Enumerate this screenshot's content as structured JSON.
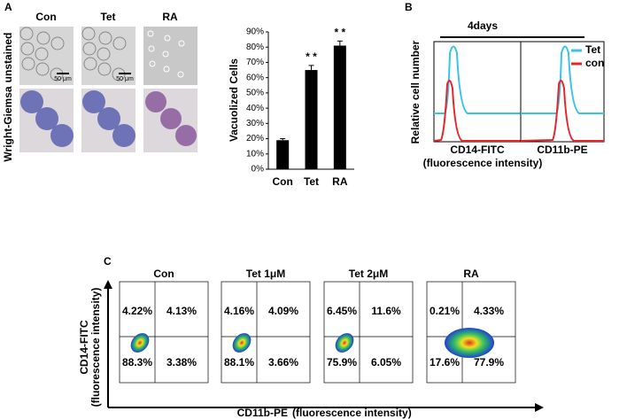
{
  "panel_a": {
    "label": "A",
    "columns": [
      "Con",
      "Tet",
      "RA"
    ],
    "rows": [
      "unstained",
      "Wright-Giemsa"
    ],
    "scale_bar": "50 μm"
  },
  "chart_data": {
    "type": "bar",
    "y_label": "Vacuolized Cells",
    "categories": [
      "Con",
      "Tet",
      "RA"
    ],
    "values": [
      19,
      65,
      81
    ],
    "errors": [
      1,
      3,
      3
    ],
    "significance": [
      null,
      "* *",
      "* *"
    ],
    "color": "#000000",
    "ylim": [
      0,
      90
    ],
    "yticks": [
      {
        "value": 0,
        "label": "0%"
      },
      {
        "value": 10,
        "label": "10%"
      },
      {
        "value": 20,
        "label": "20%"
      },
      {
        "value": 30,
        "label": "30%"
      },
      {
        "value": 40,
        "label": "40%"
      },
      {
        "value": 50,
        "label": "50%"
      },
      {
        "value": 60,
        "label": "60%"
      },
      {
        "value": 70,
        "label": "70%"
      },
      {
        "value": 80,
        "label": "80%"
      },
      {
        "value": 90,
        "label": "90%"
      }
    ]
  },
  "panel_b": {
    "label": "B",
    "duration": "4days",
    "y_label": "Relative cell number",
    "legend": [
      {
        "name": "Tet",
        "color": "#38c3e8"
      },
      {
        "name": "con",
        "color": "#e8242a"
      }
    ],
    "x_labels": [
      "CD14-FITC",
      "CD11b-PE"
    ],
    "x_sublabel": "(fluorescence intensity)"
  },
  "panel_c": {
    "label": "C",
    "y_label": "CD14-FITC",
    "y_sublabel": "(fluorescence intensity)",
    "x_label": "CD11b-PE",
    "x_sublabel": "(fluorescence intensity)",
    "plots": [
      {
        "title": "Con",
        "quadrants": [
          "4.22%",
          "4.13%",
          "88.3%",
          "3.38%"
        ]
      },
      {
        "title": "Tet 1μM",
        "quadrants": [
          "4.16%",
          "4.09%",
          "88.1%",
          "3.66%"
        ]
      },
      {
        "title": "Tet 2μM",
        "quadrants": [
          "6.45%",
          "11.6%",
          "75.9%",
          "6.05%"
        ]
      },
      {
        "title": "RA",
        "quadrants": [
          "0.21%",
          "4.33%",
          "17.6%",
          "77.9%"
        ]
      }
    ]
  }
}
